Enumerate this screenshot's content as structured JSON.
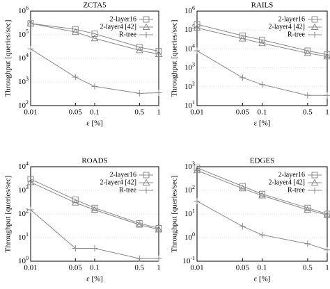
{
  "chart_data": [
    {
      "type": "line",
      "title": "ZCTA5",
      "xlabel": "ε [%]",
      "ylabel": "Throughput [queries/sec]",
      "xlog": true,
      "ylog": true,
      "x": [
        0.01,
        0.05,
        0.1,
        0.5,
        1
      ],
      "xlim": [
        0.01,
        1
      ],
      "xticks": [
        0.01,
        0.05,
        0.1,
        0.5,
        1
      ],
      "ylim": [
        100,
        1000000
      ],
      "yticks": [
        {
          "value": 100,
          "label": "10^2"
        },
        {
          "value": 1000,
          "label": "10^3"
        },
        {
          "value": 10000,
          "label": "10^4"
        },
        {
          "value": 100000,
          "label": "10^5"
        },
        {
          "value": 1000000,
          "label": "10^6"
        }
      ],
      "legend": "upper right",
      "series": [
        {
          "name": "2-layer16",
          "color": "#888888",
          "marker": "square",
          "values": [
            300000,
            170000,
            110000,
            30000,
            20000
          ]
        },
        {
          "name": "2-layer4 [42]",
          "color": "#888888",
          "marker": "triangle",
          "values": [
            300000,
            130000,
            70000,
            22000,
            15000
          ]
        },
        {
          "name": "R-tree",
          "color": "#888888",
          "marker": "plus",
          "values": [
            25000,
            1600,
            650,
            330,
            350
          ]
        }
      ]
    },
    {
      "type": "line",
      "title": "RAILS",
      "xlabel": "ε [%]",
      "ylabel": "Throughput [queries/sec]",
      "xlog": true,
      "ylog": true,
      "x": [
        0.01,
        0.05,
        0.1,
        0.5,
        1
      ],
      "xlim": [
        0.01,
        1
      ],
      "xticks": [
        0.01,
        0.05,
        0.1,
        0.5,
        1
      ],
      "ylim": [
        10,
        1000000
      ],
      "yticks": [
        {
          "value": 10,
          "label": "10^1"
        },
        {
          "value": 100,
          "label": "10^2"
        },
        {
          "value": 1000,
          "label": "10^3"
        },
        {
          "value": 10000,
          "label": "10^4"
        },
        {
          "value": 100000,
          "label": "10^5"
        },
        {
          "value": 1000000,
          "label": "10^6"
        }
      ],
      "legend": "upper right",
      "series": [
        {
          "name": "2-layer16",
          "color": "#888888",
          "marker": "square",
          "values": [
            200000,
            50000,
            30000,
            8000,
            5000
          ]
        },
        {
          "name": "2-layer4 [42]",
          "color": "#888888",
          "marker": "triangle",
          "values": [
            130000,
            35000,
            20000,
            6000,
            4000
          ]
        },
        {
          "name": "R-tree",
          "color": "#888888",
          "marker": "plus",
          "values": [
            8000,
            300,
            130,
            35,
            35
          ]
        }
      ]
    },
    {
      "type": "line",
      "title": "ROADS",
      "xlabel": "ε [%]",
      "ylabel": "Throughput [queries/sec]",
      "xlog": true,
      "ylog": true,
      "x": [
        0.01,
        0.05,
        0.1,
        0.5,
        1
      ],
      "xlim": [
        0.01,
        1
      ],
      "xticks": [
        0.01,
        0.05,
        0.1,
        0.5,
        1
      ],
      "ylim": [
        1,
        10000
      ],
      "yticks": [
        {
          "value": 1,
          "label": "10^0"
        },
        {
          "value": 10,
          "label": "10^1"
        },
        {
          "value": 100,
          "label": "10^2"
        },
        {
          "value": 1000,
          "label": "10^3"
        },
        {
          "value": 10000,
          "label": "10^4"
        }
      ],
      "legend": "upper right",
      "series": [
        {
          "name": "2-layer16",
          "color": "#888888",
          "marker": "square",
          "values": [
            3000,
            400,
            180,
            40,
            25
          ]
        },
        {
          "name": "2-layer4 [42]",
          "color": "#888888",
          "marker": "triangle",
          "values": [
            2200,
            300,
            150,
            35,
            22
          ]
        },
        {
          "name": "R-tree",
          "color": "#888888",
          "marker": "plus",
          "values": [
            150,
            3.5,
            3.5,
            1.3,
            1.3
          ]
        }
      ]
    },
    {
      "type": "line",
      "title": "EDGES",
      "xlabel": "ε [%]",
      "ylabel": "Throughput [queries/sec]",
      "xlog": true,
      "ylog": true,
      "x": [
        0.01,
        0.05,
        0.1,
        0.5,
        1
      ],
      "xlim": [
        0.01,
        1
      ],
      "xticks": [
        0.01,
        0.05,
        0.1,
        0.5,
        1
      ],
      "ylim": [
        0.1,
        1000
      ],
      "yticks": [
        {
          "value": 0.1,
          "label": "10^-1"
        },
        {
          "value": 1,
          "label": "10^0"
        },
        {
          "value": 10,
          "label": "10^1"
        },
        {
          "value": 100,
          "label": "10^2"
        },
        {
          "value": 1000,
          "label": "10^3"
        }
      ],
      "legend": "upper right",
      "series": [
        {
          "name": "2-layer16",
          "color": "#888888",
          "marker": "square",
          "values": [
            900,
            150,
            70,
            18,
            10
          ]
        },
        {
          "name": "2-layer4 [42]",
          "color": "#888888",
          "marker": "triangle",
          "values": [
            700,
            120,
            60,
            15,
            9
          ]
        },
        {
          "name": "R-tree",
          "color": "#888888",
          "marker": "plus",
          "values": [
            35,
            3,
            1.3,
            0.55,
            0.3
          ]
        }
      ]
    }
  ]
}
